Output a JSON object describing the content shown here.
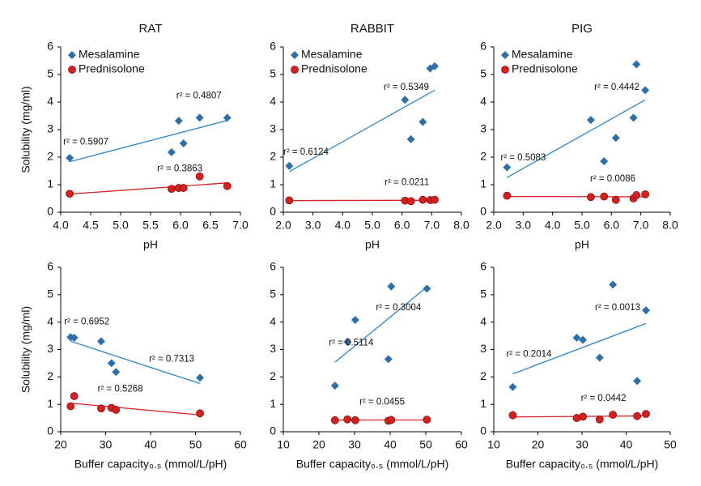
{
  "chart_data": [
    {
      "type": "scatter",
      "title": "RAT",
      "x_label": "pH",
      "y_label": "Solubility (mg/ml)",
      "legend": "upper left",
      "xlim": [
        4,
        7
      ],
      "xticks": [
        {
          "value": 4,
          "label": "4.0"
        },
        4.5,
        {
          "value": 5,
          "label": "5.0"
        },
        5.5,
        {
          "value": 6,
          "label": "6.0"
        },
        6.5,
        {
          "value": 7,
          "label": "7.0"
        }
      ],
      "ylim": [
        0,
        6
      ],
      "yticks": [
        0,
        1,
        2,
        3,
        4,
        5,
        6
      ],
      "series": [
        {
          "name": "Mesalamine",
          "color": "#2f6fa8",
          "marker": "diamond",
          "x": [
            4.15,
            5.85,
            5.97,
            6.05,
            6.32,
            6.78
          ],
          "values": [
            1.97,
            2.18,
            3.32,
            2.5,
            3.43,
            3.43
          ],
          "fit_labels": [
            {
              "text": "r² = 0.5907",
              "color": "#111111"
            },
            {
              "text": "r² = 0.4807",
              "color": "#2e86c8"
            }
          ]
        },
        {
          "name": "Prednisolone",
          "color": "#d42020",
          "marker": "circle",
          "x": [
            4.15,
            5.85,
            5.97,
            6.05,
            6.32,
            6.78
          ],
          "values": [
            0.67,
            0.85,
            0.88,
            0.88,
            1.3,
            0.95
          ],
          "fit_labels": [
            {
              "text": "r² = 0.3863",
              "color": "#d42020"
            }
          ]
        }
      ]
    },
    {
      "type": "scatter",
      "title": "RABBIT",
      "x_label": "pH",
      "legend": "upper left",
      "xlim": [
        2,
        8
      ],
      "xticks": [
        {
          "value": 2,
          "label": "2.0"
        },
        {
          "value": 3,
          "label": "3.0"
        },
        {
          "value": 4,
          "label": "4.0"
        },
        {
          "value": 5,
          "label": "5.0"
        },
        {
          "value": 6,
          "label": "6.0"
        },
        {
          "value": 7,
          "label": "7.0"
        },
        {
          "value": 8,
          "label": "8.0"
        }
      ],
      "ylim": [
        0,
        6
      ],
      "yticks": [
        0,
        1,
        2,
        3,
        4,
        5,
        6
      ],
      "series": [
        {
          "name": "Mesalamine",
          "color": "#2f6fa8",
          "marker": "diamond",
          "x": [
            2.2,
            6.1,
            6.3,
            6.7,
            6.95,
            7.1
          ],
          "values": [
            1.68,
            4.08,
            2.65,
            3.28,
            5.22,
            5.3
          ],
          "fit_labels": [
            {
              "text": "r² = 0.6124",
              "color": "#111111"
            },
            {
              "text": "r² = 0.5349",
              "color": "#2e86c8"
            }
          ]
        },
        {
          "name": "Prednisolone",
          "color": "#d42020",
          "marker": "circle",
          "x": [
            2.2,
            6.1,
            6.3,
            6.7,
            6.95,
            7.1
          ],
          "values": [
            0.43,
            0.42,
            0.4,
            0.45,
            0.44,
            0.45
          ],
          "fit_labels": [
            {
              "text": "r² = 0.0211",
              "color": "#d42020"
            }
          ]
        }
      ]
    },
    {
      "type": "scatter",
      "title": "PIG",
      "x_label": "pH",
      "legend": "upper left",
      "xlim": [
        2,
        8
      ],
      "xticks": [
        {
          "value": 2,
          "label": "2.0"
        },
        {
          "value": 3,
          "label": "3.0"
        },
        {
          "value": 4,
          "label": "4.0"
        },
        {
          "value": 5,
          "label": "5.0"
        },
        {
          "value": 6,
          "label": "6.0"
        },
        {
          "value": 7,
          "label": "7.0"
        },
        {
          "value": 8,
          "label": "8.0"
        }
      ],
      "ylim": [
        0,
        6
      ],
      "yticks": [
        0,
        1,
        2,
        3,
        4,
        5,
        6
      ],
      "series": [
        {
          "name": "Mesalamine",
          "color": "#2f6fa8",
          "marker": "diamond",
          "x": [
            2.45,
            5.3,
            5.75,
            6.15,
            6.75,
            6.85,
            7.15
          ],
          "values": [
            1.63,
            3.35,
            1.85,
            2.7,
            3.43,
            5.37,
            4.43
          ],
          "fit_labels": [
            {
              "text": "r² = 0.5083",
              "color": "#111111"
            },
            {
              "text": "r² = 0.4442",
              "color": "#2e86c8"
            }
          ]
        },
        {
          "name": "Prednisolone",
          "color": "#d42020",
          "marker": "circle",
          "x": [
            2.45,
            5.3,
            5.75,
            6.15,
            6.75,
            6.85,
            7.15
          ],
          "values": [
            0.6,
            0.55,
            0.57,
            0.45,
            0.5,
            0.62,
            0.65
          ],
          "fit_labels": [
            {
              "text": "r² = 0.0086",
              "color": "#d42020"
            }
          ]
        }
      ]
    },
    {
      "type": "scatter",
      "x_label": "Buffer capacity₀.₅ (mmol/L/pH)",
      "y_label": "Solubility (mg/ml)",
      "xlim": [
        20,
        60
      ],
      "xticks": [
        20,
        30,
        40,
        50,
        60
      ],
      "ylim": [
        0,
        6
      ],
      "yticks": [
        0,
        1,
        2,
        3,
        4,
        5,
        6
      ],
      "series": [
        {
          "name": "Mesalamine",
          "color": "#2f6fa8",
          "marker": "diamond",
          "x": [
            22.2,
            23,
            29,
            31.3,
            32.3,
            51
          ],
          "values": [
            3.45,
            3.43,
            3.3,
            2.5,
            2.18,
            1.97
          ],
          "fit_labels": [
            {
              "text": "r² = 0.6952",
              "color": "#111111"
            },
            {
              "text": "r² = 0.7313",
              "color": "#2e86c8"
            }
          ]
        },
        {
          "name": "Prednisolone",
          "color": "#d42020",
          "marker": "circle",
          "x": [
            22.2,
            23,
            29,
            31.3,
            32.3,
            51
          ],
          "values": [
            0.93,
            1.3,
            0.85,
            0.87,
            0.8,
            0.67
          ],
          "fit_labels": [
            {
              "text": "r² = 0.5268",
              "color": "#d42020"
            }
          ]
        }
      ]
    },
    {
      "type": "scatter",
      "x_label": "Buffer capacity₀.₅ (mmol/L/pH)",
      "xlim": [
        10,
        60
      ],
      "xticks": [
        10,
        20,
        30,
        40,
        50,
        60
      ],
      "ylim": [
        0,
        6
      ],
      "yticks": [
        0,
        1,
        2,
        3,
        4,
        5,
        6
      ],
      "series": [
        {
          "name": "Mesalamine",
          "color": "#2f6fa8",
          "marker": "diamond",
          "x": [
            24.5,
            28,
            30.2,
            39.5,
            40.3,
            50.3
          ],
          "values": [
            1.68,
            3.28,
            4.08,
            2.65,
            5.3,
            5.22
          ],
          "fit_labels": [
            {
              "text": "r² = 0.5114",
              "color": "#111111"
            },
            {
              "text": "r² = 0.3004",
              "color": "#2e86c8"
            }
          ]
        },
        {
          "name": "Prednisolone",
          "color": "#d42020",
          "marker": "circle",
          "x": [
            24.5,
            28,
            30.2,
            39.5,
            40.3,
            50.3
          ],
          "values": [
            0.42,
            0.45,
            0.42,
            0.4,
            0.43,
            0.44
          ],
          "fit_labels": [
            {
              "text": "r² = 0.0455",
              "color": "#d42020"
            }
          ]
        }
      ]
    },
    {
      "type": "scatter",
      "x_label": "Buffer capacity₀.₅ (mmol/L/pH)",
      "xlim": [
        10,
        50
      ],
      "xticks": [
        10,
        20,
        30,
        40,
        50
      ],
      "ylim": [
        0,
        6
      ],
      "yticks": [
        0,
        1,
        2,
        3,
        4,
        5,
        6
      ],
      "series": [
        {
          "name": "Mesalamine",
          "color": "#2f6fa8",
          "marker": "diamond",
          "x": [
            14.3,
            28.8,
            30.2,
            34,
            37,
            42.5,
            44.5
          ],
          "values": [
            1.63,
            3.43,
            3.35,
            2.7,
            5.37,
            1.85,
            4.43
          ],
          "fit_labels": [
            {
              "text": "r² = 0.2014",
              "color": "#111111"
            },
            {
              "text": "r² = 0.0013",
              "color": "#2e86c8"
            }
          ]
        },
        {
          "name": "Prednisolone",
          "color": "#d42020",
          "marker": "circle",
          "x": [
            14.3,
            28.8,
            30.2,
            34,
            37,
            42.5,
            44.5
          ],
          "values": [
            0.6,
            0.5,
            0.55,
            0.45,
            0.62,
            0.57,
            0.65
          ],
          "fit_labels": [
            {
              "text": "r² = 0.0442",
              "color": "#d42020"
            }
          ]
        }
      ]
    }
  ]
}
